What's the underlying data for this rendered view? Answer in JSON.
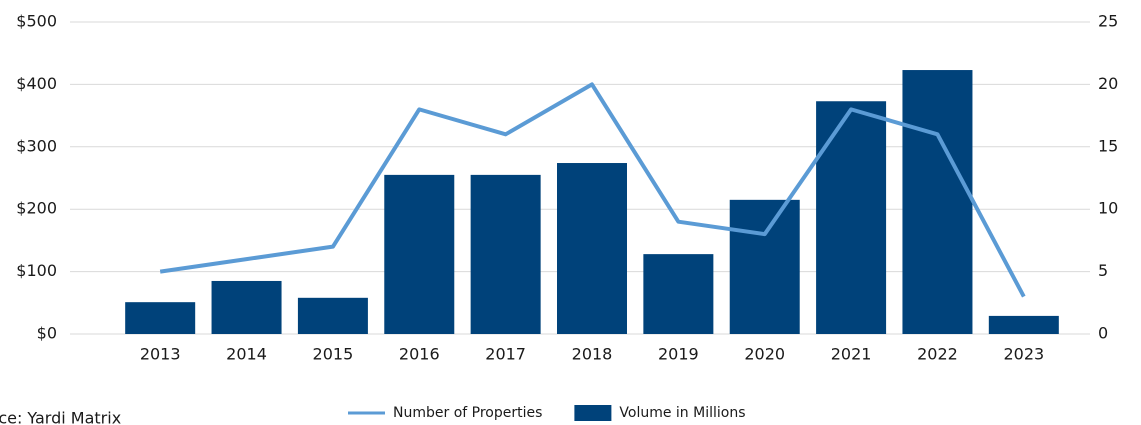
{
  "chart_data": {
    "type": "bar",
    "categories": [
      "2013",
      "2014",
      "2015",
      "2016",
      "2017",
      "2018",
      "2019",
      "2020",
      "2021",
      "2022",
      "2023"
    ],
    "series": [
      {
        "name": "Number of Properties",
        "type": "line",
        "axis": "y2",
        "color": "#5b9bd5",
        "values": [
          5,
          6,
          7,
          18,
          16,
          20,
          9,
          8,
          18,
          16,
          3
        ]
      },
      {
        "name": "Volume in Millions",
        "type": "bar",
        "color": "#00427a",
        "values": [
          51,
          85,
          58,
          255,
          255,
          274,
          128,
          215,
          373,
          423,
          29
        ]
      }
    ],
    "ylim": [
      0,
      500
    ],
    "yticks": [
      {
        "value": 0,
        "label": "$0"
      },
      {
        "value": 100,
        "label": "$100"
      },
      {
        "value": 200,
        "label": "$200"
      },
      {
        "value": 300,
        "label": "$300"
      },
      {
        "value": 400,
        "label": "$400"
      },
      {
        "value": 500,
        "label": "$500"
      }
    ],
    "y2lim": [
      0,
      25
    ],
    "y2ticks": [
      0,
      5,
      10,
      15,
      20,
      25
    ],
    "grid": true,
    "legend": "bottom",
    "source": "Source: Yardi Matrix"
  }
}
